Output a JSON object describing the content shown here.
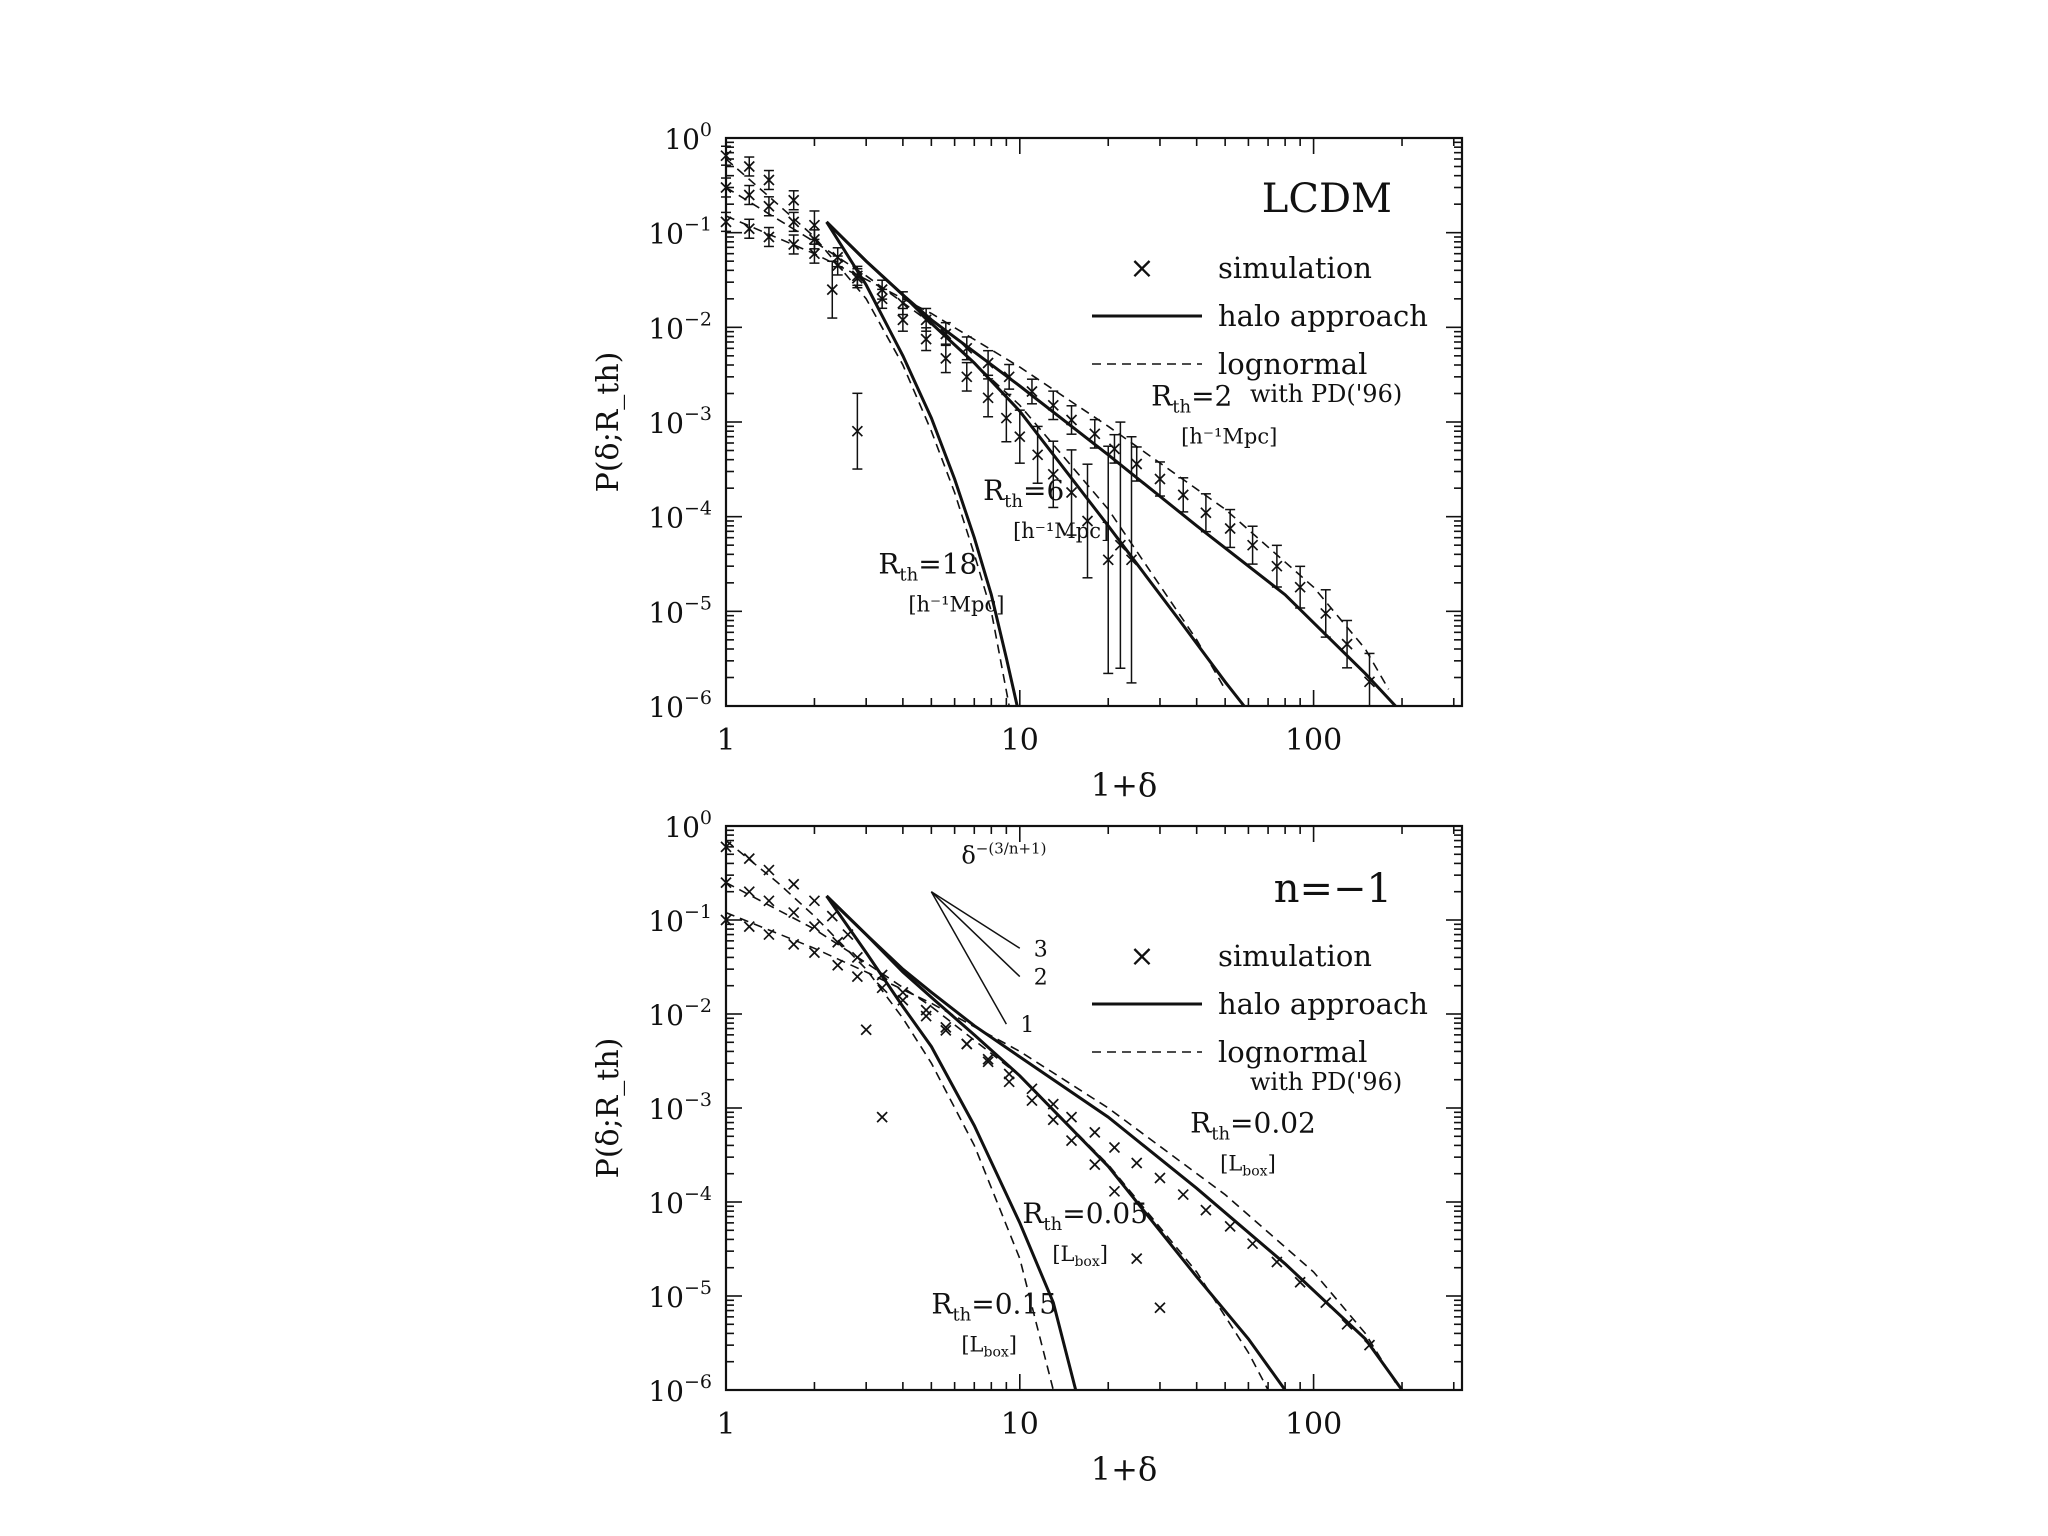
{
  "chart_data": [
    {
      "type": "line",
      "panel": "top",
      "title": "LCDM",
      "xlabel": "1+δ",
      "ylabel": "P(δ;R_th)",
      "xscale": "log",
      "yscale": "log",
      "xlim": [
        1,
        320
      ],
      "ylim": [
        1e-06,
        1
      ],
      "x_ticks": [
        {
          "value": 1,
          "label": "1"
        },
        {
          "value": 10,
          "label": "10"
        },
        {
          "value": 100,
          "label": "100"
        }
      ],
      "y_ticks": [
        {
          "value": 1,
          "mant": "10",
          "exp": "0"
        },
        {
          "value": 0.1,
          "mant": "10",
          "exp": "−1"
        },
        {
          "value": 0.01,
          "mant": "10",
          "exp": "−2"
        },
        {
          "value": 0.001,
          "mant": "10",
          "exp": "−3"
        },
        {
          "value": 0.0001,
          "mant": "10",
          "exp": "−4"
        },
        {
          "value": 1e-05,
          "mant": "10",
          "exp": "−5"
        },
        {
          "value": 1e-06,
          "mant": "10",
          "exp": "−6"
        }
      ],
      "legend": {
        "position": "right",
        "entries": [
          {
            "symbol": "×",
            "label": "simulation",
            "style": "marker"
          },
          {
            "label": "halo approach",
            "style": "solid"
          },
          {
            "label": "lognormal",
            "label2": "with PD('96)",
            "style": "dashed"
          }
        ]
      },
      "annotations": [
        {
          "main": "R",
          "sub": "th",
          "value": "=2",
          "unit": "[h⁻¹Mpc]",
          "x": 28,
          "y": 0.0015
        },
        {
          "main": "R",
          "sub": "th",
          "value": "=6",
          "unit": "[h⁻¹Mpc]",
          "x": 7.5,
          "y": 0.00015
        },
        {
          "main": "R",
          "sub": "th",
          "value": "=18",
          "unit": "[h⁻¹Mpc]",
          "x": 3.3,
          "y": 2.5e-05
        }
      ],
      "series": [
        {
          "style": "solid",
          "x": [
            2.2,
            3,
            4,
            5,
            7,
            10,
            20,
            40,
            80,
            150,
            190
          ],
          "y": [
            0.13,
            0.05,
            0.022,
            0.012,
            0.0055,
            0.0024,
            0.00045,
            8e-05,
            1.5e-05,
            2.2e-06,
            1e-06
          ]
        },
        {
          "style": "dashed",
          "x": [
            1,
            2,
            3,
            5,
            10,
            20,
            50,
            100,
            150,
            180
          ],
          "y": [
            0.15,
            0.06,
            0.032,
            0.014,
            0.0038,
            0.0009,
            0.00012,
            1.8e-05,
            4e-06,
            1.5e-06
          ]
        },
        {
          "style": "solid",
          "x": [
            2.2,
            3,
            4,
            5,
            7,
            10,
            20,
            35,
            50,
            58
          ],
          "y": [
            0.13,
            0.05,
            0.022,
            0.011,
            0.0042,
            0.0013,
            8e-05,
            8e-06,
            1.8e-06,
            1e-06
          ]
        },
        {
          "style": "dashed",
          "x": [
            1,
            2,
            3,
            5,
            10,
            20,
            40,
            50
          ],
          "y": [
            0.3,
            0.08,
            0.035,
            0.011,
            0.0015,
            0.00012,
            5e-06,
            1.5e-06
          ]
        },
        {
          "style": "solid",
          "x": [
            2.2,
            3,
            4,
            5,
            6,
            7,
            8,
            9,
            9.8
          ],
          "y": [
            0.13,
            0.028,
            0.005,
            0.0011,
            0.00025,
            6e-05,
            1.5e-05,
            3.2e-06,
            1e-06
          ]
        },
        {
          "style": "dashed",
          "x": [
            1,
            1.5,
            2,
            3,
            4,
            5,
            6,
            7,
            8,
            9.2
          ],
          "y": [
            0.6,
            0.2,
            0.09,
            0.02,
            0.004,
            0.0008,
            0.00018,
            4e-05,
            1e-05,
            1e-06
          ]
        },
        {
          "style": "marker",
          "x": [
            1,
            1.2,
            1.4,
            1.7,
            2,
            2.4,
            2.8,
            3.4,
            4,
            4.8,
            5.6,
            6.6,
            7.8,
            9.2,
            11,
            13,
            15,
            18,
            21,
            25,
            30,
            36,
            43,
            52,
            62,
            75,
            90,
            110,
            130,
            155
          ],
          "y": [
            0.13,
            0.11,
            0.09,
            0.075,
            0.06,
            0.045,
            0.033,
            0.025,
            0.018,
            0.012,
            0.0085,
            0.006,
            0.0042,
            0.003,
            0.0021,
            0.0015,
            0.00105,
            0.00075,
            0.00052,
            0.00036,
            0.00025,
            0.00017,
            0.00011,
            7.5e-05,
            5e-05,
            3e-05,
            1.8e-05,
            9.5e-06,
            4.5e-06,
            1.8e-06
          ],
          "err": [
            0.1,
            0.1,
            0.1,
            0.1,
            0.1,
            0.1,
            0.1,
            0.1,
            0.12,
            0.12,
            0.12,
            0.12,
            0.13,
            0.13,
            0.13,
            0.15,
            0.15,
            0.15,
            0.15,
            0.18,
            0.18,
            0.18,
            0.2,
            0.2,
            0.2,
            0.22,
            0.22,
            0.25,
            0.25,
            0.3
          ]
        },
        {
          "style": "marker",
          "x": [
            1,
            1.2,
            1.4,
            1.7,
            2,
            2.4,
            2.8,
            3.4,
            4,
            4.8,
            5.6,
            6.6,
            7.8,
            9,
            10,
            11.5,
            13,
            15,
            17,
            20,
            22,
            24
          ],
          "y": [
            0.3,
            0.25,
            0.19,
            0.13,
            0.085,
            0.055,
            0.035,
            0.02,
            0.012,
            0.0075,
            0.0047,
            0.003,
            0.0018,
            0.0011,
            0.0007,
            0.00045,
            0.00028,
            0.00018,
            9e-05,
            3.5e-05,
            5e-05,
            3.5e-05
          ],
          "err": [
            0.1,
            0.1,
            0.1,
            0.1,
            0.1,
            0.1,
            0.1,
            0.1,
            0.12,
            0.12,
            0.15,
            0.15,
            0.2,
            0.25,
            0.28,
            0.3,
            0.35,
            0.45,
            0.6,
            1.2,
            1.3,
            1.3
          ]
        },
        {
          "style": "marker",
          "x": [
            1,
            1.2,
            1.4,
            1.7,
            2,
            2.3,
            2.8
          ],
          "y": [
            0.65,
            0.5,
            0.36,
            0.22,
            0.12,
            0.025,
            0.0008
          ],
          "err": [
            0.1,
            0.1,
            0.1,
            0.1,
            0.15,
            0.3,
            0.4
          ]
        }
      ]
    },
    {
      "type": "line",
      "panel": "bottom",
      "title": "n=−1",
      "xlabel": "1+δ",
      "ylabel": "P(δ;R_th)",
      "xscale": "log",
      "yscale": "log",
      "xlim": [
        1,
        320
      ],
      "ylim": [
        1e-06,
        1
      ],
      "x_ticks": [
        {
          "value": 1,
          "label": "1"
        },
        {
          "value": 10,
          "label": "10"
        },
        {
          "value": 100,
          "label": "100"
        }
      ],
      "y_ticks": [
        {
          "value": 1,
          "mant": "10",
          "exp": "0"
        },
        {
          "value": 0.1,
          "mant": "10",
          "exp": "−1"
        },
        {
          "value": 0.01,
          "mant": "10",
          "exp": "−2"
        },
        {
          "value": 0.001,
          "mant": "10",
          "exp": "−3"
        },
        {
          "value": 0.0001,
          "mant": "10",
          "exp": "−4"
        },
        {
          "value": 1e-05,
          "mant": "10",
          "exp": "−5"
        },
        {
          "value": 1e-06,
          "mant": "10",
          "exp": "−6"
        }
      ],
      "legend": {
        "position": "right",
        "entries": [
          {
            "symbol": "×",
            "label": "simulation",
            "style": "marker"
          },
          {
            "label": "halo approach",
            "style": "solid"
          },
          {
            "label": "lognormal",
            "label2": "with PD('96)",
            "style": "dashed"
          }
        ]
      },
      "slope_guide": {
        "label_main": "δ",
        "label_exp": "−(3/n+1)",
        "origin": [
          5,
          0.2
        ],
        "lines": [
          {
            "label": "3",
            "x_end": 10,
            "y_end": 0.05
          },
          {
            "label": "2",
            "x_end": 10,
            "y_end": 0.025
          },
          {
            "label": "1",
            "x_end": 9,
            "y_end": 0.0078
          }
        ]
      },
      "annotations": [
        {
          "main": "R",
          "sub": "th",
          "value": "=0.02",
          "unit": "[L",
          "unit_sub": "box",
          "unit_end": "]",
          "x": 38,
          "y": 0.00055
        },
        {
          "main": "R",
          "sub": "th",
          "value": "=0.05",
          "unit": "[L",
          "unit_sub": "box",
          "unit_end": "]",
          "x": 10.2,
          "y": 6e-05
        },
        {
          "main": "R",
          "sub": "th",
          "value": "=0.15",
          "unit": "[L",
          "unit_sub": "box",
          "unit_end": "]",
          "x": 5,
          "y": 6.5e-06
        }
      ],
      "series": [
        {
          "style": "solid",
          "x": [
            2.2,
            3,
            4,
            5,
            7,
            10,
            20,
            40,
            80,
            150,
            200
          ],
          "y": [
            0.18,
            0.07,
            0.03,
            0.017,
            0.0075,
            0.0035,
            0.0008,
            0.00014,
            2.2e-05,
            3.5e-06,
            1e-06
          ]
        },
        {
          "style": "dashed",
          "x": [
            1,
            2,
            3,
            5,
            10,
            20,
            50,
            100,
            150,
            190
          ],
          "y": [
            0.12,
            0.05,
            0.028,
            0.013,
            0.004,
            0.001,
            0.00012,
            1.8e-05,
            4e-06,
            1.2e-06
          ]
        },
        {
          "style": "solid",
          "x": [
            2.2,
            3,
            4,
            5,
            7,
            10,
            20,
            40,
            60,
            80
          ],
          "y": [
            0.18,
            0.07,
            0.028,
            0.015,
            0.006,
            0.0022,
            0.00024,
            1.6e-05,
            3.5e-06,
            1e-06
          ]
        },
        {
          "style": "dashed",
          "x": [
            1,
            2,
            3,
            5,
            10,
            20,
            40,
            60,
            70
          ],
          "y": [
            0.25,
            0.08,
            0.035,
            0.012,
            0.0022,
            0.00025,
            1.8e-05,
            2.5e-06,
            1e-06
          ]
        },
        {
          "style": "solid",
          "x": [
            2.2,
            3,
            4,
            5,
            7,
            10,
            13,
            15.5
          ],
          "y": [
            0.18,
            0.045,
            0.012,
            0.0045,
            0.00065,
            6e-05,
            8.5e-06,
            1e-06
          ]
        },
        {
          "style": "dashed",
          "x": [
            1,
            1.5,
            2,
            3,
            4,
            5,
            7,
            10,
            13
          ],
          "y": [
            0.7,
            0.25,
            0.11,
            0.03,
            0.009,
            0.003,
            0.0004,
            2.5e-05,
            1e-06
          ]
        },
        {
          "style": "marker",
          "x": [
            1,
            1.2,
            1.4,
            1.7,
            2,
            2.4,
            2.8,
            3.4,
            4,
            4.8,
            5.6,
            6.6,
            7.8,
            9.2,
            11,
            13,
            15,
            18,
            21,
            25,
            30,
            36,
            43,
            52,
            62,
            75,
            90,
            110,
            130,
            155
          ],
          "y": [
            0.1,
            0.085,
            0.07,
            0.055,
            0.045,
            0.033,
            0.025,
            0.019,
            0.014,
            0.0095,
            0.0067,
            0.0048,
            0.0033,
            0.0023,
            0.0016,
            0.0011,
            0.0008,
            0.00055,
            0.00038,
            0.00026,
            0.00018,
            0.00012,
            8.2e-05,
            5.5e-05,
            3.6e-05,
            2.3e-05,
            1.4e-05,
            8.5e-06,
            5e-06,
            3e-06
          ]
        },
        {
          "style": "marker",
          "x": [
            1,
            1.2,
            1.4,
            1.7,
            2,
            2.4,
            2.8,
            3.4,
            4,
            4.8,
            5.6,
            6.6,
            7.8,
            9.2,
            11,
            13,
            15,
            18,
            21,
            25,
            30
          ],
          "y": [
            0.25,
            0.2,
            0.16,
            0.12,
            0.085,
            0.058,
            0.04,
            0.026,
            0.017,
            0.011,
            0.0072,
            0.0048,
            0.0031,
            0.0019,
            0.0012,
            0.00075,
            0.00045,
            0.00025,
            0.00013,
            2.5e-05,
            7.5e-06
          ]
        },
        {
          "style": "marker",
          "x": [
            1,
            1.2,
            1.4,
            1.7,
            2,
            2.3,
            2.6,
            3,
            3.4
          ],
          "y": [
            0.6,
            0.45,
            0.34,
            0.24,
            0.16,
            0.11,
            0.07,
            0.0068,
            0.0008
          ]
        }
      ]
    }
  ]
}
